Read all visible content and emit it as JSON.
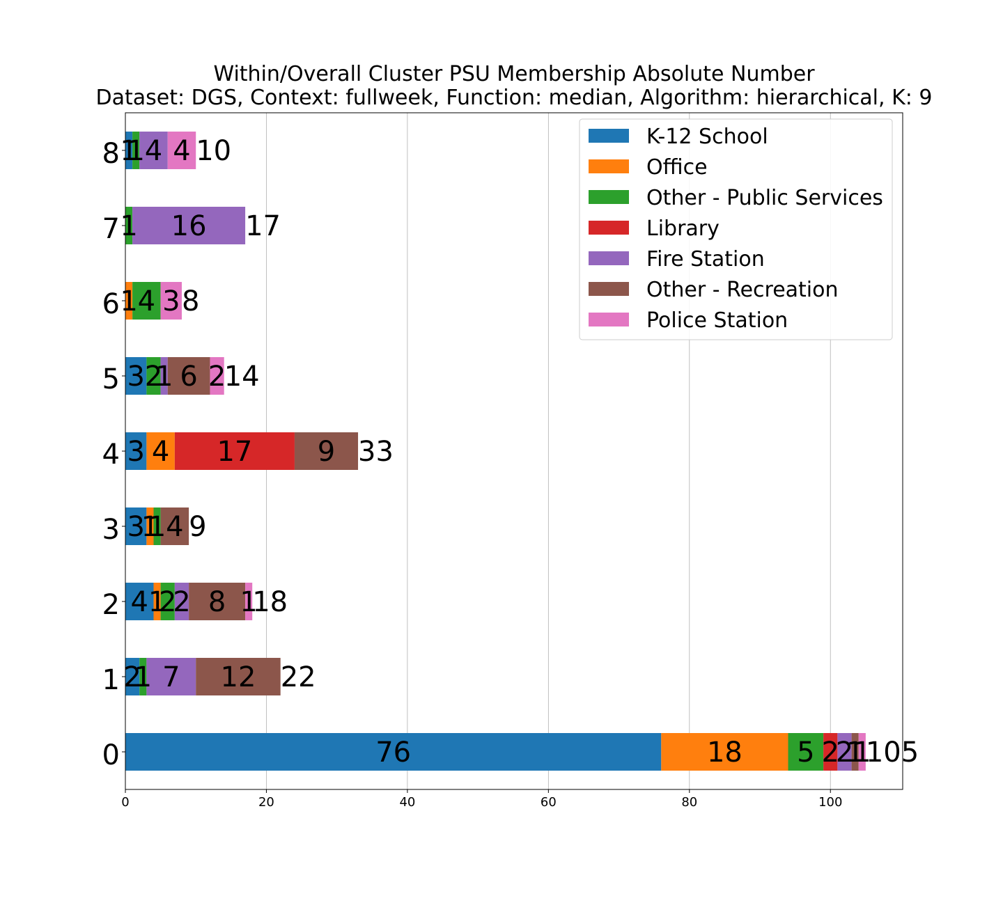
{
  "chart_data": {
    "type": "bar",
    "orientation": "horizontal",
    "stacked": true,
    "title": "Within/Overall Cluster PSU Membership Absolute Number",
    "subtitle": "Dataset: DGS, Context: fullweek, Function: median, Algorithm: hierarchical, K: 9",
    "xlabel": "",
    "ylabel": "",
    "xlim": [
      0,
      110.25
    ],
    "x_ticks": [
      0,
      20,
      40,
      60,
      80,
      100
    ],
    "grid": "x",
    "legend_position": "top-right",
    "categories": [
      "0",
      "1",
      "2",
      "3",
      "4",
      "5",
      "6",
      "7",
      "8"
    ],
    "series": [
      {
        "name": "K-12 School",
        "color": "#1f77b4",
        "values": [
          76,
          2,
          4,
          3,
          3,
          3,
          0,
          0,
          1
        ]
      },
      {
        "name": "Office",
        "color": "#ff7f0e",
        "values": [
          18,
          0,
          1,
          1,
          4,
          0,
          1,
          0,
          0
        ]
      },
      {
        "name": "Other - Public Services",
        "color": "#2ca02c",
        "values": [
          5,
          1,
          2,
          1,
          0,
          2,
          4,
          1,
          1
        ]
      },
      {
        "name": "Library",
        "color": "#d62728",
        "values": [
          2,
          0,
          0,
          0,
          17,
          0,
          0,
          0,
          0
        ]
      },
      {
        "name": "Fire Station",
        "color": "#9467bd",
        "values": [
          2,
          7,
          2,
          0,
          0,
          1,
          0,
          16,
          4
        ]
      },
      {
        "name": "Other - Recreation",
        "color": "#8c564b",
        "values": [
          1,
          12,
          8,
          4,
          9,
          6,
          0,
          0,
          0
        ]
      },
      {
        "name": "Police Station",
        "color": "#e377c2",
        "values": [
          1,
          0,
          1,
          0,
          0,
          2,
          3,
          0,
          4
        ]
      }
    ],
    "totals": [
      105,
      22,
      18,
      9,
      33,
      14,
      8,
      17,
      10
    ]
  }
}
